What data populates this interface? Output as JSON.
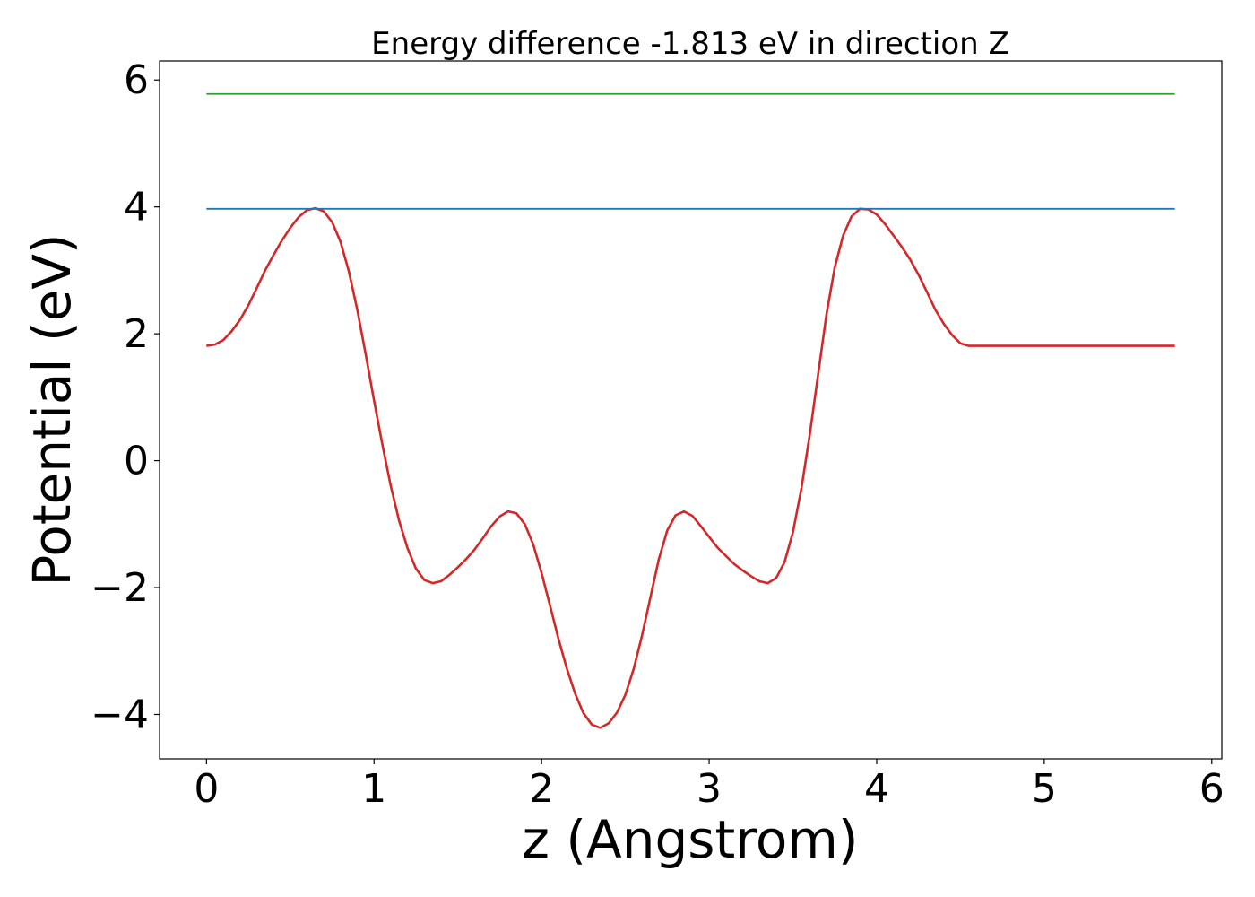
{
  "chart_data": {
    "type": "line",
    "title": "Energy difference -1.813 eV in direction Z",
    "xlabel": "z (Angstrom)",
    "ylabel": "Potential (eV)",
    "xlim": [
      -0.28,
      6.06
    ],
    "ylim": [
      -4.7,
      6.3
    ],
    "xticks": [
      0,
      1,
      2,
      3,
      4,
      5,
      6
    ],
    "xtick_labels": [
      "0",
      "1",
      "2",
      "3",
      "4",
      "5",
      "6"
    ],
    "yticks": [
      -4,
      -2,
      0,
      2,
      4,
      6
    ],
    "ytick_labels": [
      "−4",
      "−2",
      "0",
      "2",
      "4",
      "6"
    ],
    "grid": false,
    "series": [
      {
        "color": "#d62728",
        "x": [
          0,
          0.05,
          0.1,
          0.15,
          0.2,
          0.25,
          0.3,
          0.35,
          0.4,
          0.45,
          0.5,
          0.55,
          0.6,
          0.65,
          0.7,
          0.75,
          0.8,
          0.85,
          0.9,
          0.95,
          1.0,
          1.05,
          1.1,
          1.15,
          1.2,
          1.25,
          1.3,
          1.35,
          1.4,
          1.45,
          1.5,
          1.55,
          1.6,
          1.65,
          1.7,
          1.75,
          1.8,
          1.85,
          1.9,
          1.95,
          2.0,
          2.05,
          2.1,
          2.15,
          2.2,
          2.25,
          2.3,
          2.35,
          2.4,
          2.45,
          2.5,
          2.55,
          2.6,
          2.65,
          2.7,
          2.75,
          2.8,
          2.85,
          2.9,
          2.95,
          3.0,
          3.05,
          3.1,
          3.15,
          3.2,
          3.25,
          3.3,
          3.35,
          3.4,
          3.45,
          3.5,
          3.55,
          3.6,
          3.65,
          3.7,
          3.75,
          3.8,
          3.85,
          3.9,
          3.95,
          4.0,
          4.05,
          4.1,
          4.15,
          4.2,
          4.25,
          4.3,
          4.35,
          4.4,
          4.45,
          4.5,
          4.55,
          4.6,
          4.65,
          4.7,
          4.75,
          4.8,
          4.85,
          4.9,
          4.95,
          5.0,
          5.05,
          5.1,
          5.15,
          5.2,
          5.25,
          5.3,
          5.35,
          5.4,
          5.45,
          5.5,
          5.55,
          5.6,
          5.65,
          5.7,
          5.75,
          5.78
        ],
        "y": [
          1.81,
          1.83,
          1.9,
          2.04,
          2.22,
          2.45,
          2.72,
          3.0,
          3.24,
          3.47,
          3.67,
          3.84,
          3.95,
          3.98,
          3.93,
          3.76,
          3.45,
          2.98,
          2.38,
          1.68,
          0.95,
          0.25,
          -0.4,
          -0.95,
          -1.38,
          -1.7,
          -1.88,
          -1.93,
          -1.9,
          -1.8,
          -1.68,
          -1.55,
          -1.4,
          -1.22,
          -1.03,
          -0.88,
          -0.8,
          -0.83,
          -1.0,
          -1.32,
          -1.77,
          -2.28,
          -2.8,
          -3.27,
          -3.67,
          -3.98,
          -4.16,
          -4.21,
          -4.14,
          -3.97,
          -3.69,
          -3.28,
          -2.75,
          -2.15,
          -1.55,
          -1.1,
          -0.86,
          -0.8,
          -0.87,
          -1.03,
          -1.2,
          -1.37,
          -1.5,
          -1.63,
          -1.73,
          -1.82,
          -1.9,
          -1.93,
          -1.85,
          -1.6,
          -1.13,
          -0.45,
          0.4,
          1.35,
          2.3,
          3.05,
          3.55,
          3.85,
          3.97,
          3.96,
          3.88,
          3.73,
          3.55,
          3.37,
          3.17,
          2.93,
          2.66,
          2.38,
          2.16,
          1.98,
          1.85,
          1.81,
          1.81,
          1.81,
          1.81,
          1.81,
          1.81,
          1.81,
          1.81,
          1.81,
          1.81,
          1.81,
          1.81,
          1.81,
          1.81,
          1.81,
          1.81,
          1.81,
          1.81,
          1.81,
          1.81,
          1.81,
          1.81,
          1.81,
          1.81,
          1.81,
          1.81
        ]
      },
      {
        "color": "#1f77b4",
        "x": [
          0,
          5.78
        ],
        "y": [
          3.97,
          3.97
        ]
      },
      {
        "color": "#2ca02c",
        "x": [
          0,
          5.78
        ],
        "y": [
          5.78,
          5.78
        ]
      }
    ]
  }
}
